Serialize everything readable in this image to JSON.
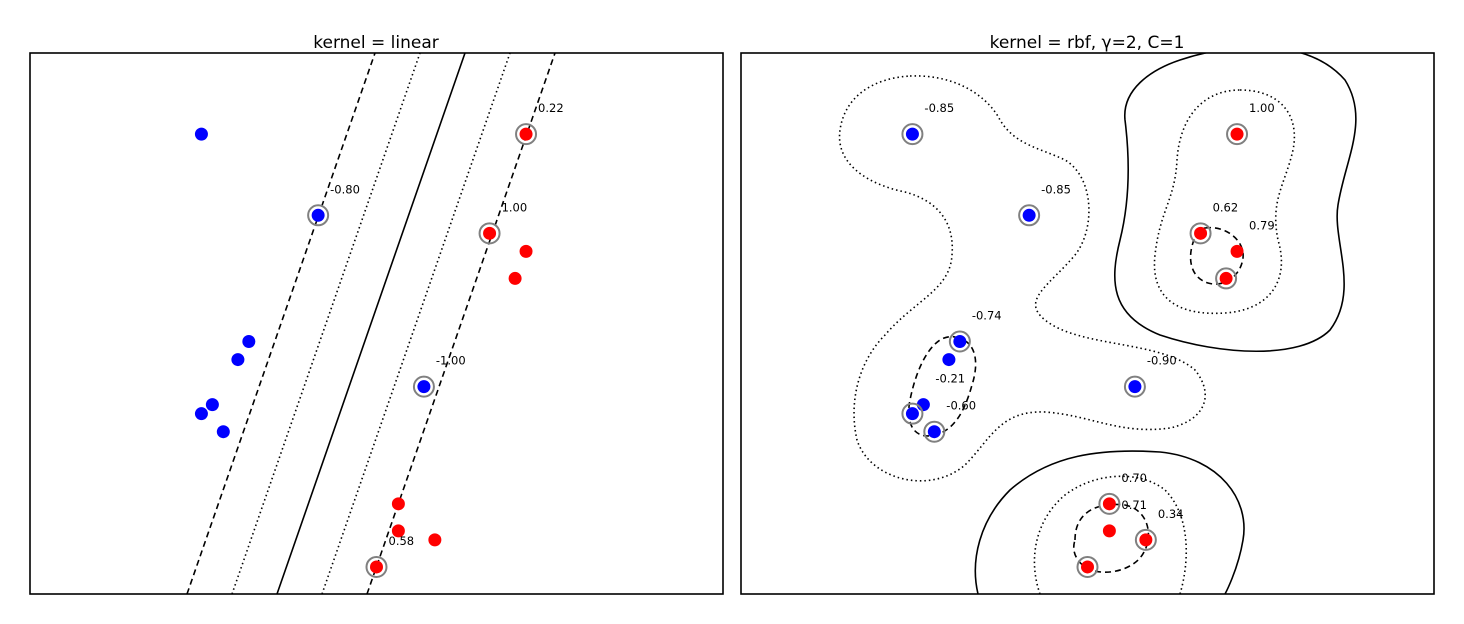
{
  "colors": {
    "class_neg": "#0000ff",
    "class_pos": "#ff0000",
    "sv_ring": "#808080"
  },
  "chart_data": [
    {
      "type": "scatter",
      "title": "kernel = linear",
      "xlim": [
        0,
        1.9
      ],
      "ylim": [
        0,
        3
      ],
      "grid": false,
      "points": [
        {
          "x": 0.47,
          "y": 2.55,
          "label": -1,
          "sv": false
        },
        {
          "x": 0.79,
          "y": 2.1,
          "label": -1,
          "sv": true,
          "ann": "-0.80"
        },
        {
          "x": 0.6,
          "y": 1.4,
          "label": -1,
          "sv": false
        },
        {
          "x": 0.57,
          "y": 1.3,
          "label": -1,
          "sv": false
        },
        {
          "x": 0.5,
          "y": 1.05,
          "label": -1,
          "sv": false
        },
        {
          "x": 0.47,
          "y": 1.0,
          "label": -1,
          "sv": false
        },
        {
          "x": 0.53,
          "y": 0.9,
          "label": -1,
          "sv": false
        },
        {
          "x": 1.08,
          "y": 1.15,
          "label": -1,
          "sv": true,
          "ann": "-1.00"
        },
        {
          "x": 1.36,
          "y": 2.55,
          "label": 1,
          "sv": true,
          "ann": "0.22"
        },
        {
          "x": 1.26,
          "y": 2.0,
          "label": 1,
          "sv": true,
          "ann": "1.00"
        },
        {
          "x": 1.36,
          "y": 1.9,
          "label": 1,
          "sv": false
        },
        {
          "x": 1.33,
          "y": 1.75,
          "label": 1,
          "sv": false
        },
        {
          "x": 1.01,
          "y": 0.5,
          "label": 1,
          "sv": false
        },
        {
          "x": 1.01,
          "y": 0.35,
          "label": 1,
          "sv": false
        },
        {
          "x": 1.11,
          "y": 0.3,
          "label": 1,
          "sv": false
        },
        {
          "x": 0.95,
          "y": 0.15,
          "label": 1,
          "sv": true,
          "ann": "0.58"
        }
      ]
    },
    {
      "type": "scatter",
      "title": "kernel = rbf, γ=2, C=1",
      "xlim": [
        0,
        1.9
      ],
      "ylim": [
        0,
        3
      ],
      "grid": false,
      "points": [
        {
          "x": 0.47,
          "y": 2.55,
          "label": -1,
          "sv": true,
          "ann": "-0.85"
        },
        {
          "x": 0.79,
          "y": 2.1,
          "label": -1,
          "sv": true,
          "ann": "-0.85"
        },
        {
          "x": 0.6,
          "y": 1.4,
          "label": -1,
          "sv": true,
          "ann": "-0.74"
        },
        {
          "x": 0.57,
          "y": 1.3,
          "label": -1,
          "sv": false
        },
        {
          "x": 0.5,
          "y": 1.05,
          "label": -1,
          "sv": false,
          "ann": "-0.21"
        },
        {
          "x": 0.47,
          "y": 1.0,
          "label": -1,
          "sv": true
        },
        {
          "x": 0.53,
          "y": 0.9,
          "label": -1,
          "sv": true,
          "ann": "-0.60"
        },
        {
          "x": 1.08,
          "y": 1.15,
          "label": -1,
          "sv": true,
          "ann": "-0.90"
        },
        {
          "x": 1.36,
          "y": 2.55,
          "label": 1,
          "sv": true,
          "ann": "1.00"
        },
        {
          "x": 1.26,
          "y": 2.0,
          "label": 1,
          "sv": true,
          "ann": "0.62"
        },
        {
          "x": 1.36,
          "y": 1.9,
          "label": 1,
          "sv": false,
          "ann": "0.79"
        },
        {
          "x": 1.33,
          "y": 1.75,
          "label": 1,
          "sv": true
        },
        {
          "x": 1.01,
          "y": 0.5,
          "label": 1,
          "sv": true,
          "ann": "0.70"
        },
        {
          "x": 1.01,
          "y": 0.35,
          "label": 1,
          "sv": false,
          "ann": "0.71"
        },
        {
          "x": 1.11,
          "y": 0.3,
          "label": 1,
          "sv": true,
          "ann": "0.34"
        },
        {
          "x": 0.95,
          "y": 0.15,
          "label": 1,
          "sv": true
        }
      ]
    }
  ]
}
